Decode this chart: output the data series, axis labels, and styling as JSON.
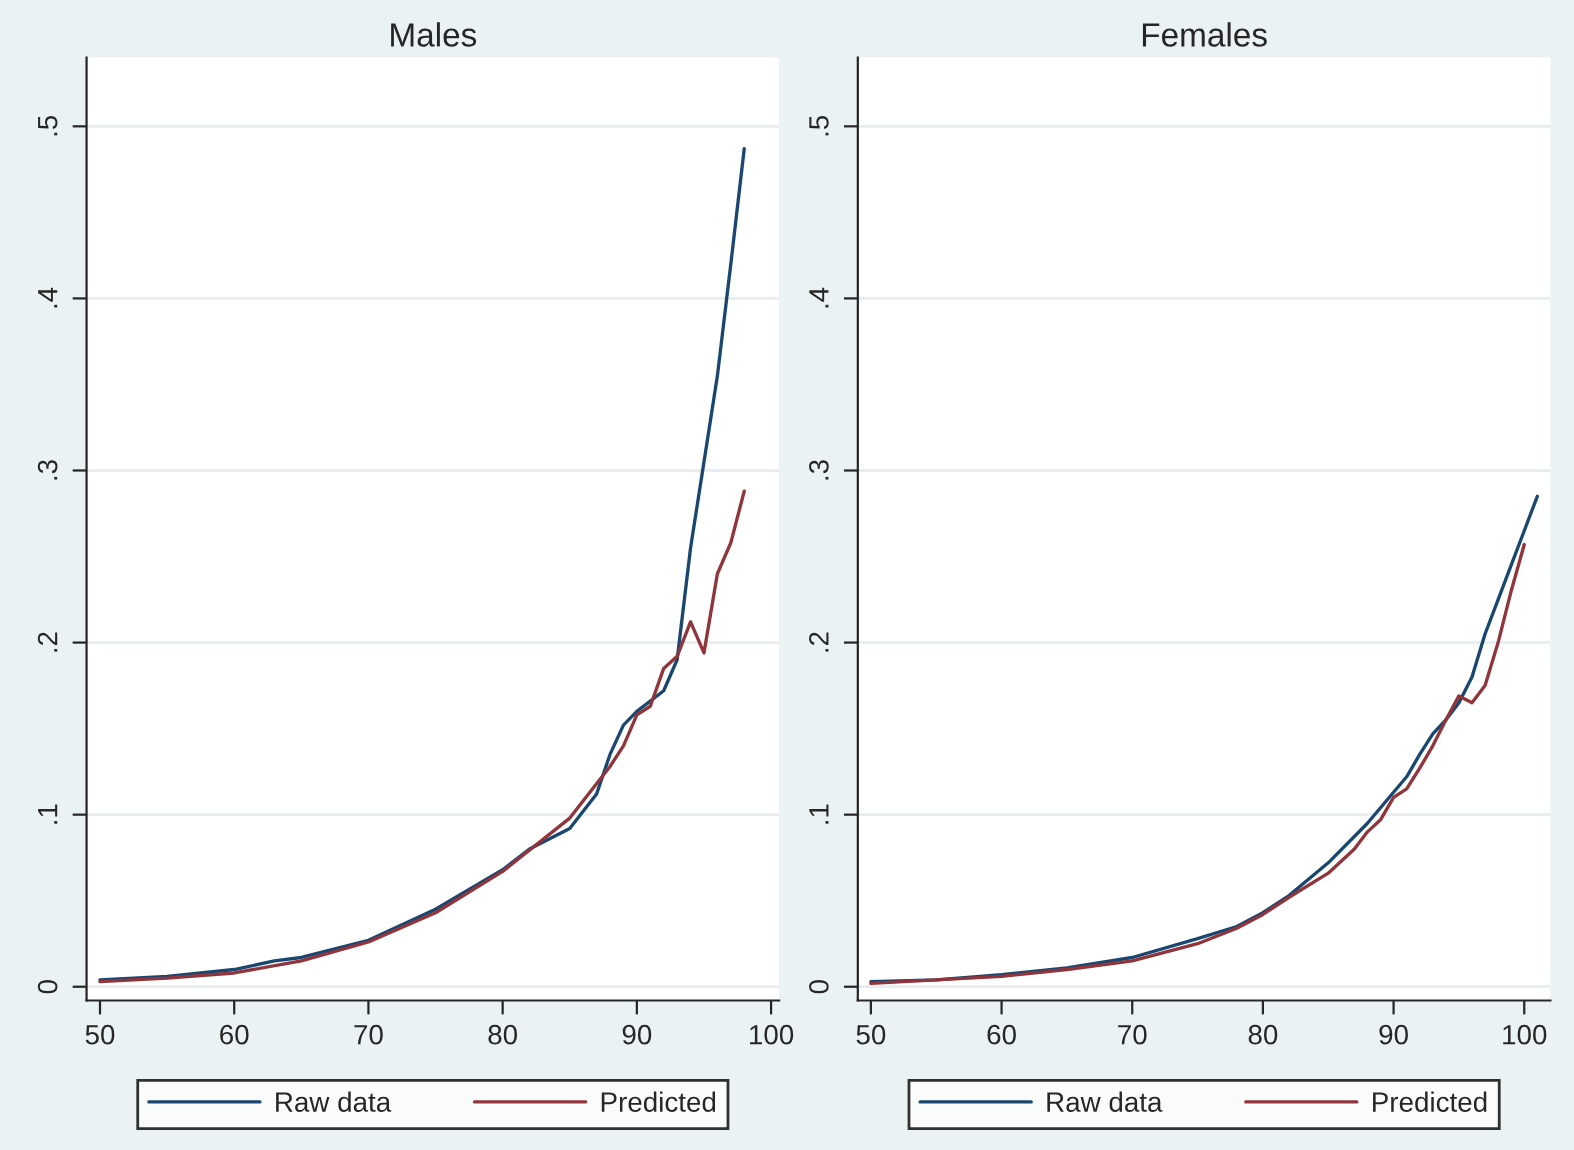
{
  "chart_data": [
    {
      "type": "line",
      "title": "Males",
      "xlim": [
        49,
        100.6
      ],
      "ylim": [
        -0.008,
        0.54
      ],
      "xticks": [
        50,
        60,
        70,
        80,
        90,
        {
          "value": 100,
          "label": "100"
        }
      ],
      "yticks": [
        {
          "value": 0,
          "label": "0"
        },
        {
          "value": 0.1,
          "label": ".1"
        },
        {
          "value": 0.2,
          "label": ".2"
        },
        {
          "value": 0.3,
          "label": ".3"
        },
        {
          "value": 0.4,
          "label": ".4"
        },
        {
          "value": 0.5,
          "label": ".5"
        }
      ],
      "grid": "y",
      "legend": "bottom",
      "series": [
        {
          "name": "Raw data",
          "color": "#1a476f",
          "x": [
            50,
            55,
            60,
            63,
            65,
            70,
            75,
            80,
            82,
            85,
            87,
            88,
            89,
            90,
            92,
            93,
            94,
            95,
            96,
            97,
            98
          ],
          "values": [
            0.004,
            0.006,
            0.01,
            0.015,
            0.017,
            0.027,
            0.045,
            0.068,
            0.08,
            0.092,
            0.112,
            0.135,
            0.152,
            0.16,
            0.172,
            0.19,
            0.255,
            0.305,
            0.355,
            0.42,
            0.487
          ]
        },
        {
          "name": "Predicted",
          "color": "#90353b",
          "x": [
            50,
            55,
            60,
            65,
            70,
            75,
            80,
            85,
            88,
            89,
            90,
            91,
            92,
            93,
            94,
            95,
            96,
            97,
            98
          ],
          "values": [
            0.003,
            0.005,
            0.008,
            0.015,
            0.026,
            0.043,
            0.067,
            0.098,
            0.128,
            0.14,
            0.158,
            0.163,
            0.185,
            0.192,
            0.212,
            0.194,
            0.24,
            0.258,
            0.288
          ]
        }
      ]
    },
    {
      "type": "line",
      "title": "Females",
      "xlim": [
        49,
        102
      ],
      "ylim": [
        -0.008,
        0.54
      ],
      "xticks": [
        50,
        60,
        70,
        80,
        90,
        100
      ],
      "yticks": [
        {
          "value": 0,
          "label": "0"
        },
        {
          "value": 0.1,
          "label": ".1"
        },
        {
          "value": 0.2,
          "label": ".2"
        },
        {
          "value": 0.3,
          "label": ".3"
        },
        {
          "value": 0.4,
          "label": ".4"
        },
        {
          "value": 0.5,
          "label": ".5"
        }
      ],
      "grid": "y",
      "legend": "bottom",
      "series": [
        {
          "name": "Raw data",
          "color": "#1a476f",
          "x": [
            50,
            55,
            60,
            65,
            70,
            75,
            78,
            80,
            82,
            85,
            88,
            90,
            91,
            92,
            93,
            94,
            95,
            96,
            97,
            98,
            99,
            100,
            101
          ],
          "values": [
            0.003,
            0.004,
            0.007,
            0.011,
            0.017,
            0.028,
            0.035,
            0.043,
            0.053,
            0.072,
            0.095,
            0.113,
            0.122,
            0.135,
            0.147,
            0.155,
            0.165,
            0.18,
            0.205,
            0.225,
            0.245,
            0.265,
            0.285
          ]
        },
        {
          "name": "Predicted",
          "color": "#90353b",
          "x": [
            50,
            55,
            60,
            65,
            70,
            75,
            78,
            80,
            82,
            85,
            87,
            88,
            89,
            90,
            91,
            92,
            93,
            94,
            95,
            96,
            97,
            98,
            99,
            100
          ],
          "values": [
            0.002,
            0.004,
            0.006,
            0.01,
            0.015,
            0.025,
            0.034,
            0.042,
            0.052,
            0.066,
            0.08,
            0.09,
            0.097,
            0.11,
            0.115,
            0.127,
            0.14,
            0.155,
            0.169,
            0.165,
            0.175,
            0.2,
            0.23,
            0.257
          ]
        }
      ]
    }
  ]
}
